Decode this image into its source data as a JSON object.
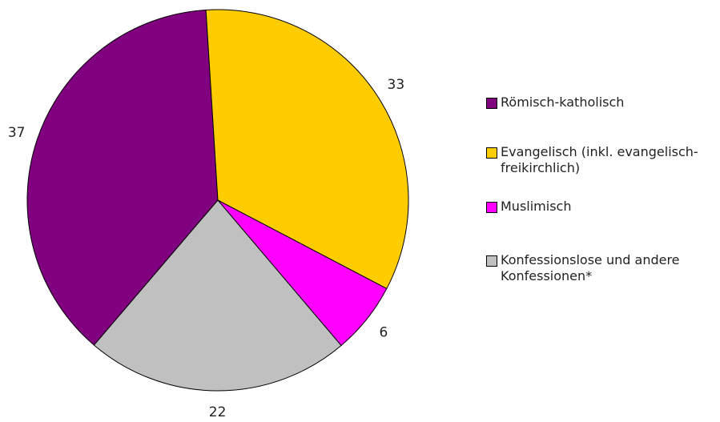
{
  "chart_data": {
    "type": "pie",
    "categories": [
      "Römisch-katholisch",
      "Evangelisch (inkl. evangelisch-freikirchlich)",
      "Muslimisch",
      "Konfessionslose und andere Konfessionen*"
    ],
    "values": [
      37,
      33,
      6,
      22
    ],
    "colors": [
      "#800080",
      "#ffcc00",
      "#ff00ff",
      "#c0c0c0"
    ],
    "legend": "right"
  }
}
